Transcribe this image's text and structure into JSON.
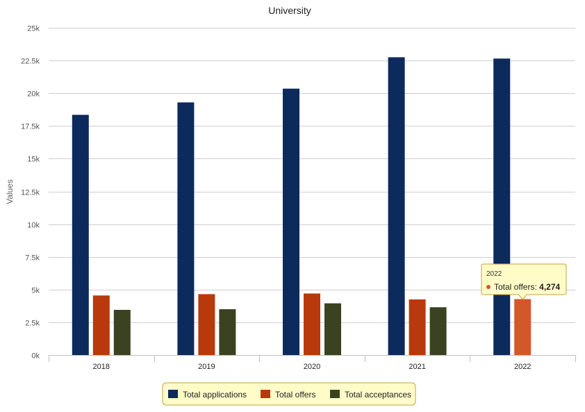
{
  "chart_data": {
    "type": "bar",
    "title": "University",
    "ylabel": "Values",
    "xlabel": "",
    "ylim": [
      0,
      25000
    ],
    "yticks": [
      0,
      2500,
      5000,
      7500,
      10000,
      12500,
      15000,
      17500,
      20000,
      22500,
      25000
    ],
    "ytick_labels": [
      "0k",
      "2.5k",
      "5k",
      "7.5k",
      "10k",
      "12.5k",
      "15k",
      "17.5k",
      "20k",
      "22.5k",
      "25k"
    ],
    "categories": [
      "2018",
      "2019",
      "2020",
      "2021",
      "2022"
    ],
    "series": [
      {
        "name": "Total applications",
        "color": "#0d2a5c",
        "values": [
          18350,
          19300,
          20350,
          22750,
          22650
        ]
      },
      {
        "name": "Total offers",
        "color": "#b83a0c",
        "values": [
          4550,
          4650,
          4700,
          4250,
          4274
        ]
      },
      {
        "name": "Total acceptances",
        "color": "#3a4221",
        "values": [
          3450,
          3500,
          3950,
          3650,
          0
        ]
      }
    ],
    "grid": true,
    "legend_position": "bottom-center",
    "tooltip": {
      "category": "2022",
      "series_name": "Total offers",
      "label": "Total offers: ",
      "value_text": "4,274",
      "highlight_color": "#d4572a",
      "border_color": "#c8a13a",
      "background": "#fffcc8"
    }
  }
}
